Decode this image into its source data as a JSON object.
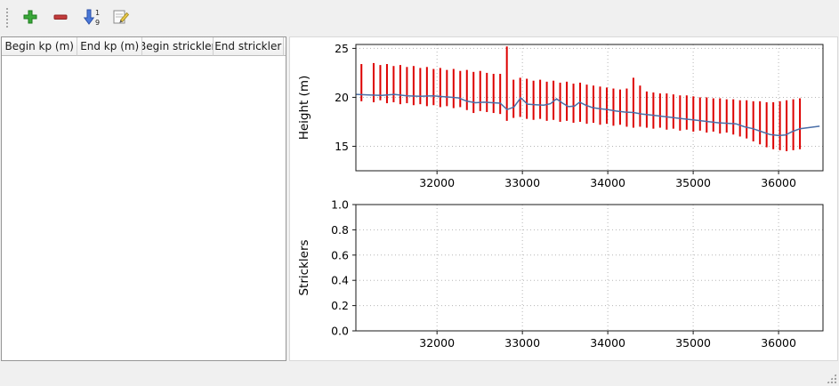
{
  "toolbar": {
    "buttons": [
      {
        "id": "add",
        "icon": "plus-icon"
      },
      {
        "id": "remove",
        "icon": "minus-icon"
      },
      {
        "id": "sort",
        "icon": "sort-numeric-icon"
      },
      {
        "id": "edit",
        "icon": "edit-icon"
      }
    ]
  },
  "table": {
    "columns": [
      "Begin kp (m)",
      "End kp (m)",
      "Begin strickler",
      "End strickler"
    ],
    "rows": []
  },
  "chart_data": [
    {
      "type": "vlines+line",
      "ylabel": "Height (m)",
      "xlim": [
        31050,
        36520
      ],
      "ylim": [
        12.5,
        25.4
      ],
      "xticks": [
        32000,
        33000,
        34000,
        35000,
        36000
      ],
      "xticklabels": [
        "32000",
        "33000",
        "34000",
        "35000",
        "36000"
      ],
      "yticks": [
        15,
        20,
        25
      ],
      "yticklabels": [
        "15",
        "20",
        "25"
      ],
      "grid": "dotted",
      "colors": {
        "bars": "#dd0000",
        "line": "#4a6fa8"
      },
      "bars": [
        [
          31115,
          19.6,
          23.4
        ],
        [
          31258,
          19.5,
          23.5
        ],
        [
          31336,
          19.7,
          23.3
        ],
        [
          31414,
          19.4,
          23.4
        ],
        [
          31492,
          19.5,
          23.2
        ],
        [
          31570,
          19.3,
          23.3
        ],
        [
          31648,
          19.4,
          23.1
        ],
        [
          31726,
          19.2,
          23.2
        ],
        [
          31804,
          19.3,
          23.0
        ],
        [
          31882,
          19.1,
          23.1
        ],
        [
          31960,
          19.2,
          22.9
        ],
        [
          32038,
          19.0,
          23.0
        ],
        [
          32116,
          19.1,
          22.8
        ],
        [
          32194,
          18.9,
          22.9
        ],
        [
          32272,
          19.0,
          22.7
        ],
        [
          32350,
          18.7,
          22.8
        ],
        [
          32428,
          18.4,
          22.6
        ],
        [
          32506,
          18.6,
          22.7
        ],
        [
          32584,
          18.5,
          22.5
        ],
        [
          32662,
          18.4,
          22.4
        ],
        [
          32740,
          18.3,
          22.4
        ],
        [
          32818,
          17.6,
          25.2
        ],
        [
          32896,
          17.9,
          21.8
        ],
        [
          32974,
          18.0,
          22.0
        ],
        [
          33052,
          17.8,
          21.9
        ],
        [
          33130,
          17.7,
          21.7
        ],
        [
          33208,
          17.8,
          21.8
        ],
        [
          33286,
          17.6,
          21.6
        ],
        [
          33364,
          17.7,
          21.7
        ],
        [
          33442,
          17.5,
          21.5
        ],
        [
          33520,
          17.6,
          21.6
        ],
        [
          33598,
          17.4,
          21.4
        ],
        [
          33676,
          17.5,
          21.5
        ],
        [
          33754,
          17.3,
          21.3
        ],
        [
          33832,
          17.4,
          21.2
        ],
        [
          33910,
          17.2,
          21.1
        ],
        [
          33988,
          17.3,
          21.0
        ],
        [
          34066,
          17.1,
          20.9
        ],
        [
          34144,
          17.2,
          20.8
        ],
        [
          34222,
          17.0,
          20.9
        ],
        [
          34300,
          16.9,
          22.0
        ],
        [
          34378,
          17.0,
          21.2
        ],
        [
          34456,
          16.9,
          20.6
        ],
        [
          34534,
          16.8,
          20.5
        ],
        [
          34612,
          16.9,
          20.4
        ],
        [
          34690,
          16.7,
          20.4
        ],
        [
          34768,
          16.8,
          20.3
        ],
        [
          34846,
          16.6,
          20.2
        ],
        [
          34924,
          16.7,
          20.2
        ],
        [
          35002,
          16.5,
          20.1
        ],
        [
          35080,
          16.6,
          20.0
        ],
        [
          35158,
          16.4,
          20.0
        ],
        [
          35236,
          16.5,
          19.9
        ],
        [
          35314,
          16.3,
          19.9
        ],
        [
          35392,
          16.4,
          19.8
        ],
        [
          35470,
          16.2,
          19.8
        ],
        [
          35548,
          16.0,
          19.7
        ],
        [
          35626,
          15.8,
          19.7
        ],
        [
          35704,
          15.5,
          19.6
        ],
        [
          35782,
          15.2,
          19.6
        ],
        [
          35860,
          14.9,
          19.5
        ],
        [
          35938,
          14.7,
          19.5
        ],
        [
          36016,
          14.6,
          19.6
        ],
        [
          36094,
          14.5,
          19.7
        ],
        [
          36172,
          14.6,
          19.8
        ],
        [
          36250,
          14.7,
          19.9
        ]
      ],
      "line": [
        [
          31055,
          20.3
        ],
        [
          31200,
          20.25
        ],
        [
          31350,
          20.2
        ],
        [
          31500,
          20.3
        ],
        [
          31650,
          20.15
        ],
        [
          31800,
          20.1
        ],
        [
          31950,
          20.15
        ],
        [
          32100,
          20.05
        ],
        [
          32250,
          19.95
        ],
        [
          32350,
          19.6
        ],
        [
          32450,
          19.45
        ],
        [
          32550,
          19.5
        ],
        [
          32650,
          19.45
        ],
        [
          32740,
          19.4
        ],
        [
          32820,
          18.75
        ],
        [
          32900,
          19.0
        ],
        [
          32980,
          19.95
        ],
        [
          33060,
          19.3
        ],
        [
          33150,
          19.25
        ],
        [
          33250,
          19.2
        ],
        [
          33330,
          19.35
        ],
        [
          33400,
          19.85
        ],
        [
          33470,
          19.4
        ],
        [
          33540,
          19.05
        ],
        [
          33610,
          19.1
        ],
        [
          33670,
          19.5
        ],
        [
          33740,
          19.2
        ],
        [
          33820,
          18.95
        ],
        [
          33900,
          18.85
        ],
        [
          34000,
          18.75
        ],
        [
          34100,
          18.6
        ],
        [
          34200,
          18.5
        ],
        [
          34300,
          18.45
        ],
        [
          34400,
          18.3
        ],
        [
          34500,
          18.2
        ],
        [
          34600,
          18.1
        ],
        [
          34700,
          18.0
        ],
        [
          34800,
          17.9
        ],
        [
          34900,
          17.8
        ],
        [
          35000,
          17.7
        ],
        [
          35100,
          17.6
        ],
        [
          35200,
          17.5
        ],
        [
          35300,
          17.4
        ],
        [
          35400,
          17.35
        ],
        [
          35500,
          17.3
        ],
        [
          35600,
          17.0
        ],
        [
          35700,
          16.8
        ],
        [
          35800,
          16.5
        ],
        [
          35900,
          16.2
        ],
        [
          36000,
          16.1
        ],
        [
          36080,
          16.15
        ],
        [
          36160,
          16.5
        ],
        [
          36250,
          16.8
        ],
        [
          36480,
          17.05
        ]
      ]
    },
    {
      "type": "empty",
      "ylabel": "Stricklers",
      "xlim": [
        31050,
        36520
      ],
      "ylim": [
        0,
        1
      ],
      "xticks": [
        32000,
        33000,
        34000,
        35000,
        36000
      ],
      "xticklabels": [
        "32000",
        "33000",
        "34000",
        "35000",
        "36000"
      ],
      "yticks": [
        0,
        0.2,
        0.4,
        0.6,
        0.8,
        1.0
      ],
      "yticklabels": [
        "0.0",
        "0.2",
        "0.4",
        "0.6",
        "0.8",
        "1.0"
      ],
      "grid": "dotted",
      "colors": {
        "bars": "#dd0000",
        "line": "#4a6fa8"
      }
    }
  ]
}
